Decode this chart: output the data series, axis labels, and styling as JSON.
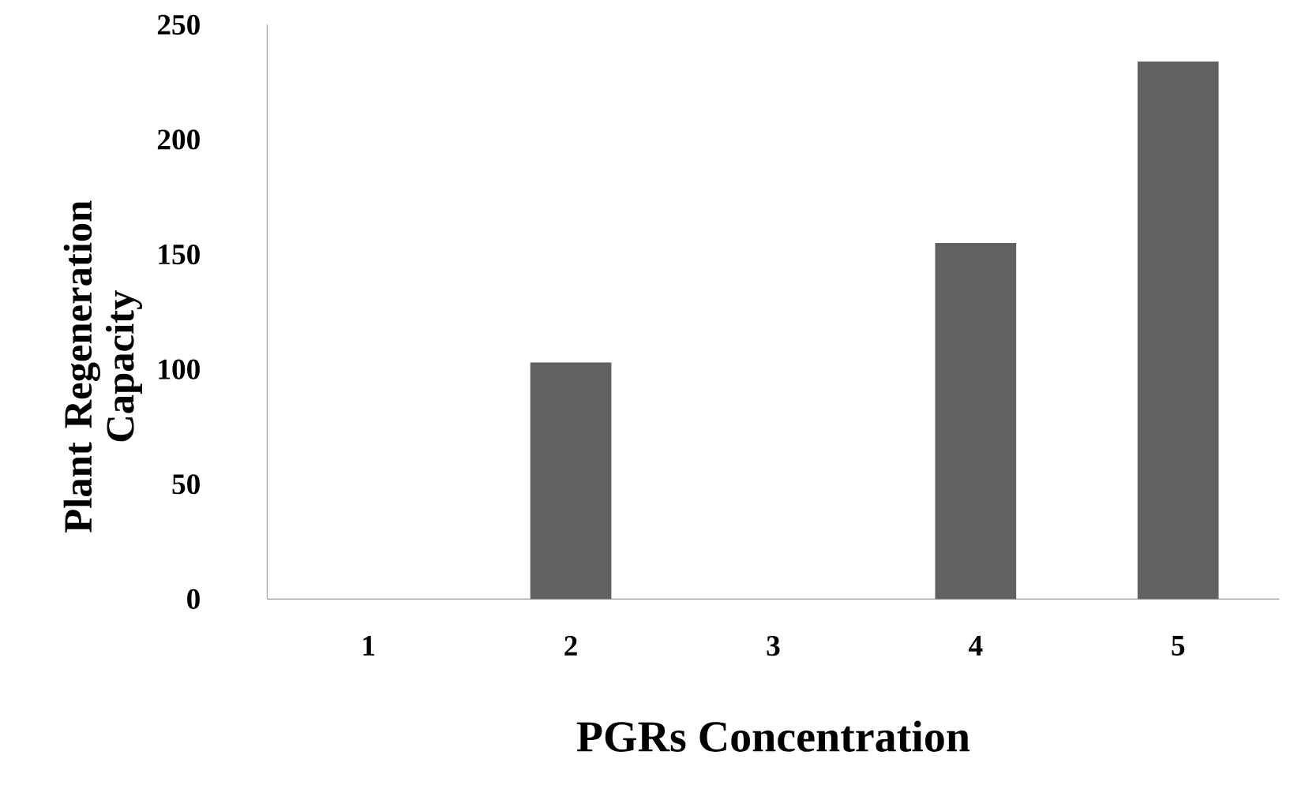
{
  "chart_data": {
    "type": "bar",
    "xlabel": "PGRs Concentration",
    "ylabel": "Plant Regeneration Capacity",
    "categories": [
      "1",
      "2",
      "3",
      "4",
      "5"
    ],
    "values": [
      0,
      103,
      0,
      155,
      234
    ],
    "color": "#616161",
    "ylim": [
      0,
      250
    ],
    "yticks": [
      0,
      50,
      100,
      150,
      200,
      250
    ],
    "grid": false
  }
}
